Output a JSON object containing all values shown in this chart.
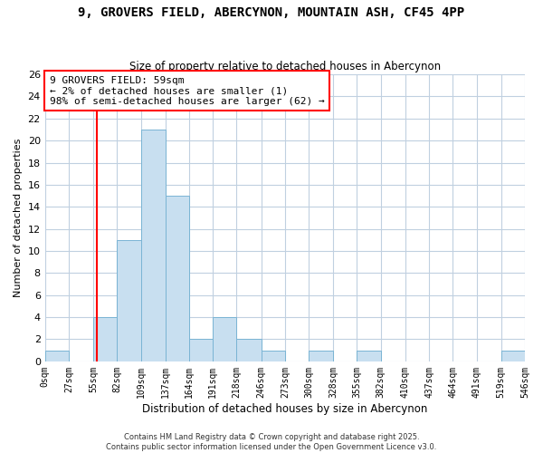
{
  "title": "9, GROVERS FIELD, ABERCYNON, MOUNTAIN ASH, CF45 4PP",
  "subtitle": "Size of property relative to detached houses in Abercynon",
  "xlabel": "Distribution of detached houses by size in Abercynon",
  "ylabel": "Number of detached properties",
  "bin_edges": [
    0,
    27,
    55,
    82,
    109,
    137,
    164,
    191,
    218,
    246,
    273,
    300,
    328,
    355,
    382,
    410,
    437,
    464,
    491,
    519,
    546
  ],
  "counts": [
    1,
    0,
    4,
    11,
    21,
    15,
    2,
    4,
    2,
    1,
    0,
    1,
    0,
    1,
    0,
    0,
    0,
    0,
    0,
    1
  ],
  "bar_color": "#c8dff0",
  "bar_edge_color": "#7ab4d4",
  "property_line_x": 59,
  "property_line_color": "red",
  "ylim": [
    0,
    26
  ],
  "yticks": [
    0,
    2,
    4,
    6,
    8,
    10,
    12,
    14,
    16,
    18,
    20,
    22,
    24,
    26
  ],
  "annotation_title": "9 GROVERS FIELD: 59sqm",
  "annotation_line1": "← 2% of detached houses are smaller (1)",
  "annotation_line2": "98% of semi-detached houses are larger (62) →",
  "footer_line1": "Contains HM Land Registry data © Crown copyright and database right 2025.",
  "footer_line2": "Contains public sector information licensed under the Open Government Licence v3.0.",
  "background_color": "#ffffff",
  "grid_color": "#c0d0e0",
  "tick_labels": [
    "0sqm",
    "27sqm",
    "55sqm",
    "82sqm",
    "109sqm",
    "137sqm",
    "164sqm",
    "191sqm",
    "218sqm",
    "246sqm",
    "273sqm",
    "300sqm",
    "328sqm",
    "355sqm",
    "382sqm",
    "410sqm",
    "437sqm",
    "464sqm",
    "491sqm",
    "519sqm",
    "546sqm"
  ]
}
